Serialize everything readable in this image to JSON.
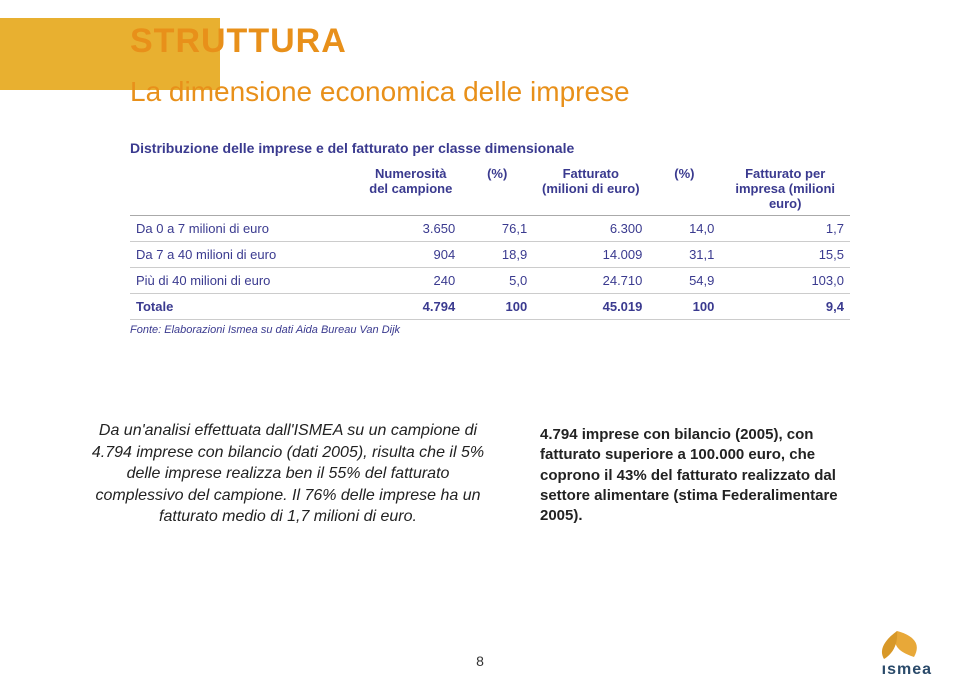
{
  "title": "STRUTTURA",
  "subtitle": "La dimensione economica delle imprese",
  "table": {
    "title": "Distribuzione delle imprese e del fatturato per classe dimensionale",
    "columns": [
      {
        "label": "",
        "width": "32%"
      },
      {
        "label": "Numerosità del campione",
        "width": "14%"
      },
      {
        "label": "(%)",
        "width": "10%"
      },
      {
        "label": "Fatturato (milioni di euro)",
        "width": "16%"
      },
      {
        "label": "(%)",
        "width": "10%"
      },
      {
        "label": "Fatturato per impresa (milioni euro)",
        "width": "18%"
      }
    ],
    "rows": [
      {
        "label": "Da 0 a 7 milioni di euro",
        "c1": "3.650",
        "c2": "76,1",
        "c3": "6.300",
        "c4": "14,0",
        "c5": "1,7"
      },
      {
        "label": "Da 7 a 40 milioni di euro",
        "c1": "904",
        "c2": "18,9",
        "c3": "14.009",
        "c4": "31,1",
        "c5": "15,5"
      },
      {
        "label": "Più di 40 milioni di euro",
        "c1": "240",
        "c2": "5,0",
        "c3": "24.710",
        "c4": "54,9",
        "c5": "103,0"
      }
    ],
    "total": {
      "label": "Totale",
      "c1": "4.794",
      "c2": "100",
      "c3": "45.019",
      "c4": "100",
      "c5": "9,4"
    },
    "source": "Fonte: Elaborazioni Ismea su dati Aida Bureau Van Dijk"
  },
  "body_left": "Da un'analisi effettuata dall'ISMEA su un campione di 4.794 imprese con bilancio (dati 2005), risulta che il 5% delle imprese realizza ben il 55% del fatturato complessivo del campione. Il 76% delle imprese ha un fatturato medio di 1,7 milioni di euro.",
  "body_right": "4.794 imprese con bilancio (2005), con fatturato superiore a 100.000 euro, che coprono il 43% del fatturato realizzato dal settore alimentare (stima Federalimentare 2005).",
  "page_number": "8",
  "logo_text": "ısmea",
  "colors": {
    "accent": "#e8901a",
    "band": "#e8b030",
    "table_text": "#3a3a8f",
    "logo_leaf": "#e8a838",
    "logo_text": "#2a4a6a"
  }
}
